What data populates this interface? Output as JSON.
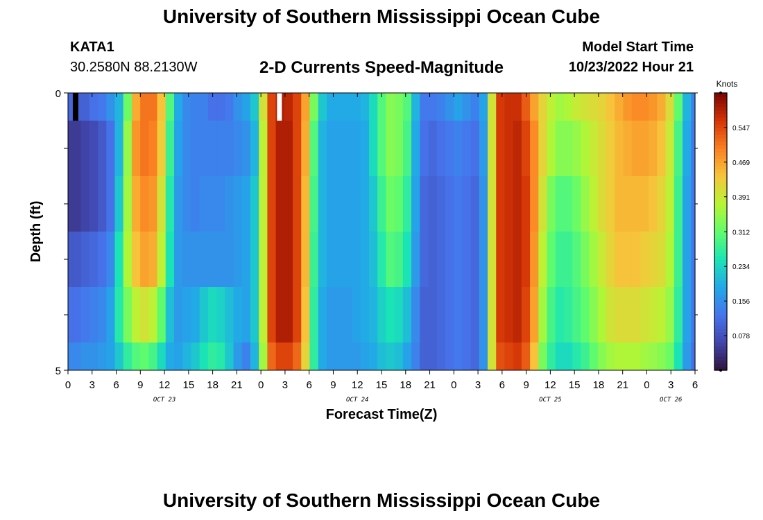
{
  "page": {
    "title": "University of Southern Mississippi Ocean Cube",
    "bottom_title": "University of Southern Mississippi Ocean Cube",
    "station": "KATA1",
    "coords": "30.2580N  88.2130W",
    "subtitle": "2-D Currents Speed-Magnitude",
    "model_start_label": "Model Start Time",
    "model_start_value": "10/23/2022 Hour 21"
  },
  "chart_data": {
    "type": "heatmap",
    "title": "2-D Currents Speed-Magnitude",
    "xlabel": "Forecast Time(Z)",
    "ylabel": "Depth (ft)",
    "y_ticks": [
      "0",
      "5"
    ],
    "y_range": [
      0,
      5
    ],
    "x_tick_labels": [
      "0",
      "3",
      "6",
      "9",
      "12",
      "15",
      "18",
      "21",
      "0",
      "3",
      "6",
      "9",
      "12",
      "15",
      "18",
      "21",
      "0",
      "3",
      "6",
      "9",
      "12",
      "15",
      "18",
      "21",
      "0",
      "3",
      "6"
    ],
    "date_labels": [
      {
        "label": "OCT 23",
        "hour": 12
      },
      {
        "label": "OCT 24",
        "hour": 36
      },
      {
        "label": "OCT 25",
        "hour": 60
      },
      {
        "label": "OCT 26",
        "hour": 75
      }
    ],
    "time_range_hours": [
      0,
      78
    ],
    "colorbar": {
      "unit": "Knots",
      "min": 0.0,
      "max": 0.625,
      "ticks": [
        "0.078",
        "0.156",
        "0.234",
        "0.312",
        "0.391",
        "0.469",
        "0.547"
      ],
      "tick_values": [
        0.078,
        0.156,
        0.234,
        0.312,
        0.391,
        0.469,
        0.547
      ]
    },
    "depth_layers": [
      "0-0.5",
      "0.5-1.5",
      "1.5-2.5",
      "2.5-3.5",
      "3.5-4.5",
      "4.5-5"
    ],
    "speed_knots_hourly": [
      [
        0.11,
        0.1,
        0.1,
        0.12,
        0.13,
        0.16,
        0.2,
        0.32,
        0.46,
        0.51,
        0.51,
        0.44,
        0.3,
        0.19,
        0.15,
        0.14,
        0.14,
        0.12,
        0.12,
        0.13,
        0.16,
        0.18,
        0.22,
        0.4,
        0.55,
        0.59,
        0.58,
        0.55,
        0.47,
        0.33,
        0.22,
        0.19,
        0.19,
        0.19,
        0.19,
        0.2,
        0.24,
        0.3,
        0.34,
        0.33,
        0.3,
        0.2,
        0.13,
        0.13,
        0.14,
        0.16,
        0.18,
        0.16,
        0.14,
        0.18,
        0.4,
        0.56,
        0.57,
        0.57,
        0.53,
        0.47,
        0.42,
        0.38,
        0.36,
        0.37,
        0.39,
        0.4,
        0.41,
        0.42,
        0.44,
        0.46,
        0.48,
        0.49,
        0.49,
        0.48,
        0.46,
        0.41,
        0.31,
        0.2,
        0.14
      ],
      [
        0.05,
        0.05,
        0.06,
        0.07,
        0.09,
        0.12,
        0.2,
        0.35,
        0.48,
        0.51,
        0.5,
        0.43,
        0.28,
        0.18,
        0.15,
        0.14,
        0.14,
        0.14,
        0.14,
        0.14,
        0.15,
        0.16,
        0.2,
        0.38,
        0.55,
        0.59,
        0.59,
        0.55,
        0.46,
        0.3,
        0.2,
        0.18,
        0.18,
        0.18,
        0.18,
        0.19,
        0.24,
        0.3,
        0.34,
        0.33,
        0.29,
        0.19,
        0.12,
        0.11,
        0.12,
        0.13,
        0.14,
        0.13,
        0.12,
        0.17,
        0.4,
        0.56,
        0.57,
        0.58,
        0.55,
        0.49,
        0.42,
        0.37,
        0.34,
        0.34,
        0.35,
        0.37,
        0.39,
        0.41,
        0.43,
        0.45,
        0.46,
        0.47,
        0.47,
        0.46,
        0.44,
        0.39,
        0.29,
        0.19,
        0.13
      ],
      [
        0.05,
        0.05,
        0.06,
        0.07,
        0.09,
        0.12,
        0.22,
        0.36,
        0.46,
        0.49,
        0.48,
        0.4,
        0.26,
        0.17,
        0.15,
        0.14,
        0.15,
        0.15,
        0.15,
        0.16,
        0.17,
        0.18,
        0.22,
        0.38,
        0.55,
        0.59,
        0.59,
        0.55,
        0.45,
        0.29,
        0.2,
        0.18,
        0.18,
        0.18,
        0.18,
        0.19,
        0.22,
        0.28,
        0.32,
        0.31,
        0.27,
        0.18,
        0.11,
        0.1,
        0.11,
        0.12,
        0.13,
        0.12,
        0.11,
        0.16,
        0.4,
        0.56,
        0.57,
        0.58,
        0.56,
        0.49,
        0.4,
        0.33,
        0.3,
        0.3,
        0.32,
        0.35,
        0.38,
        0.41,
        0.43,
        0.45,
        0.45,
        0.45,
        0.45,
        0.44,
        0.42,
        0.38,
        0.28,
        0.18,
        0.13
      ],
      [
        0.09,
        0.09,
        0.1,
        0.11,
        0.12,
        0.15,
        0.25,
        0.37,
        0.44,
        0.47,
        0.46,
        0.38,
        0.25,
        0.17,
        0.16,
        0.16,
        0.16,
        0.16,
        0.16,
        0.16,
        0.17,
        0.18,
        0.22,
        0.38,
        0.55,
        0.59,
        0.59,
        0.55,
        0.45,
        0.28,
        0.2,
        0.18,
        0.18,
        0.18,
        0.18,
        0.19,
        0.21,
        0.26,
        0.3,
        0.29,
        0.25,
        0.17,
        0.11,
        0.1,
        0.11,
        0.12,
        0.13,
        0.12,
        0.11,
        0.16,
        0.4,
        0.56,
        0.57,
        0.58,
        0.56,
        0.48,
        0.38,
        0.31,
        0.28,
        0.28,
        0.3,
        0.33,
        0.36,
        0.39,
        0.42,
        0.44,
        0.44,
        0.44,
        0.43,
        0.42,
        0.41,
        0.37,
        0.28,
        0.18,
        0.13
      ],
      [
        0.12,
        0.12,
        0.13,
        0.14,
        0.15,
        0.18,
        0.26,
        0.33,
        0.38,
        0.4,
        0.38,
        0.31,
        0.21,
        0.17,
        0.18,
        0.19,
        0.22,
        0.24,
        0.23,
        0.21,
        0.19,
        0.18,
        0.22,
        0.38,
        0.55,
        0.59,
        0.59,
        0.55,
        0.44,
        0.27,
        0.19,
        0.17,
        0.17,
        0.17,
        0.18,
        0.19,
        0.2,
        0.23,
        0.25,
        0.24,
        0.21,
        0.15,
        0.1,
        0.1,
        0.11,
        0.12,
        0.13,
        0.12,
        0.11,
        0.16,
        0.4,
        0.56,
        0.57,
        0.58,
        0.55,
        0.47,
        0.36,
        0.29,
        0.26,
        0.27,
        0.29,
        0.31,
        0.34,
        0.37,
        0.4,
        0.41,
        0.41,
        0.41,
        0.4,
        0.39,
        0.38,
        0.35,
        0.27,
        0.18,
        0.13
      ],
      [
        0.15,
        0.15,
        0.16,
        0.16,
        0.17,
        0.18,
        0.22,
        0.27,
        0.3,
        0.31,
        0.29,
        0.24,
        0.19,
        0.18,
        0.2,
        0.22,
        0.25,
        0.27,
        0.26,
        0.22,
        0.17,
        0.14,
        0.2,
        0.36,
        0.52,
        0.55,
        0.55,
        0.52,
        0.42,
        0.27,
        0.19,
        0.17,
        0.17,
        0.17,
        0.17,
        0.18,
        0.19,
        0.21,
        0.22,
        0.21,
        0.18,
        0.14,
        0.1,
        0.1,
        0.11,
        0.12,
        0.13,
        0.12,
        0.11,
        0.16,
        0.4,
        0.54,
        0.55,
        0.56,
        0.53,
        0.44,
        0.33,
        0.27,
        0.24,
        0.24,
        0.26,
        0.28,
        0.31,
        0.34,
        0.36,
        0.37,
        0.37,
        0.37,
        0.36,
        0.35,
        0.34,
        0.32,
        0.25,
        0.17,
        0.12
      ]
    ]
  }
}
